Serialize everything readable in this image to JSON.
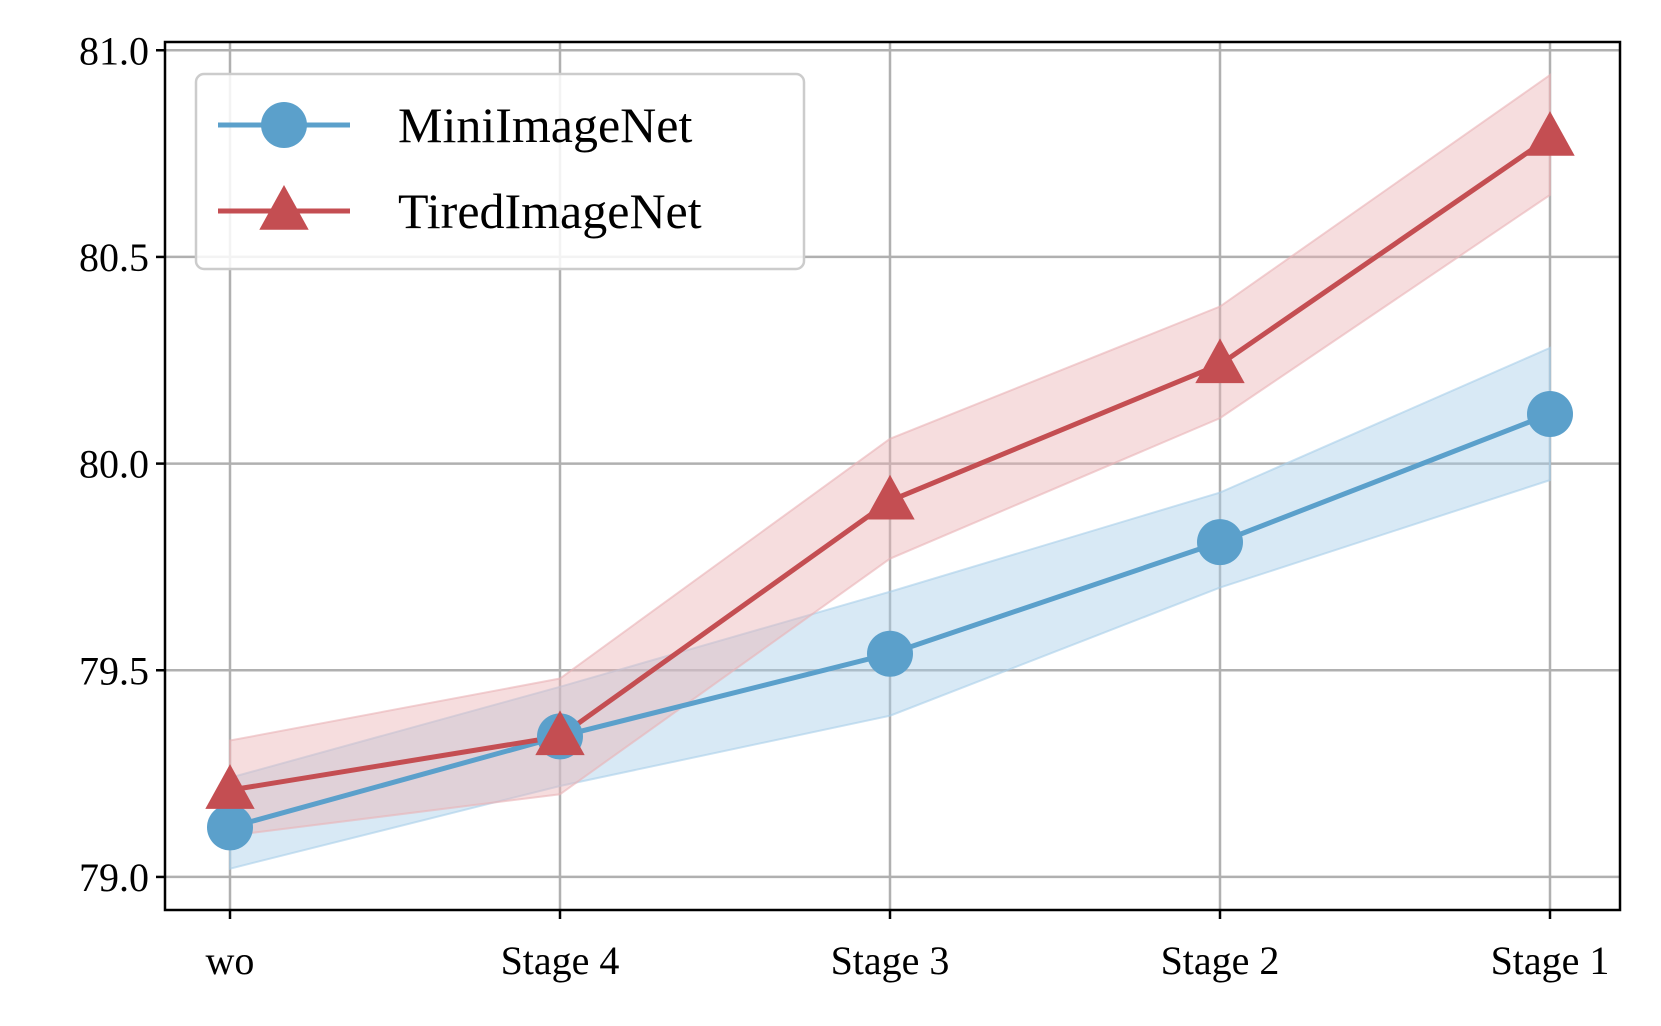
{
  "chart_data": {
    "type": "line",
    "categories": [
      "wo",
      "Stage 4",
      "Stage 3",
      "Stage 2",
      "Stage 1"
    ],
    "ylim": [
      78.92,
      81.02
    ],
    "yticks": [
      79.0,
      79.5,
      80.0,
      80.5,
      81.0
    ],
    "ytick_labels": [
      "79.0",
      "79.5",
      "80.0",
      "80.5",
      "81.0"
    ],
    "grid": true,
    "legend_position": "top-left",
    "series": [
      {
        "name": "MiniImageNet",
        "color": "#5ba0cb",
        "band_color": "#a9cfe9",
        "marker": "circle",
        "values": [
          79.12,
          79.34,
          79.54,
          79.81,
          80.12
        ],
        "lower": [
          79.02,
          79.22,
          79.39,
          79.7,
          79.96
        ],
        "upper": [
          79.24,
          79.46,
          79.69,
          79.93,
          80.28
        ]
      },
      {
        "name": "TiredImageNet",
        "color": "#c44e52",
        "band_color": "#eab3b5",
        "marker": "triangle",
        "values": [
          79.21,
          79.34,
          79.91,
          80.24,
          80.79
        ],
        "lower": [
          79.1,
          79.2,
          79.77,
          80.11,
          80.65
        ],
        "upper": [
          79.33,
          79.48,
          80.06,
          80.38,
          80.94
        ]
      }
    ]
  }
}
